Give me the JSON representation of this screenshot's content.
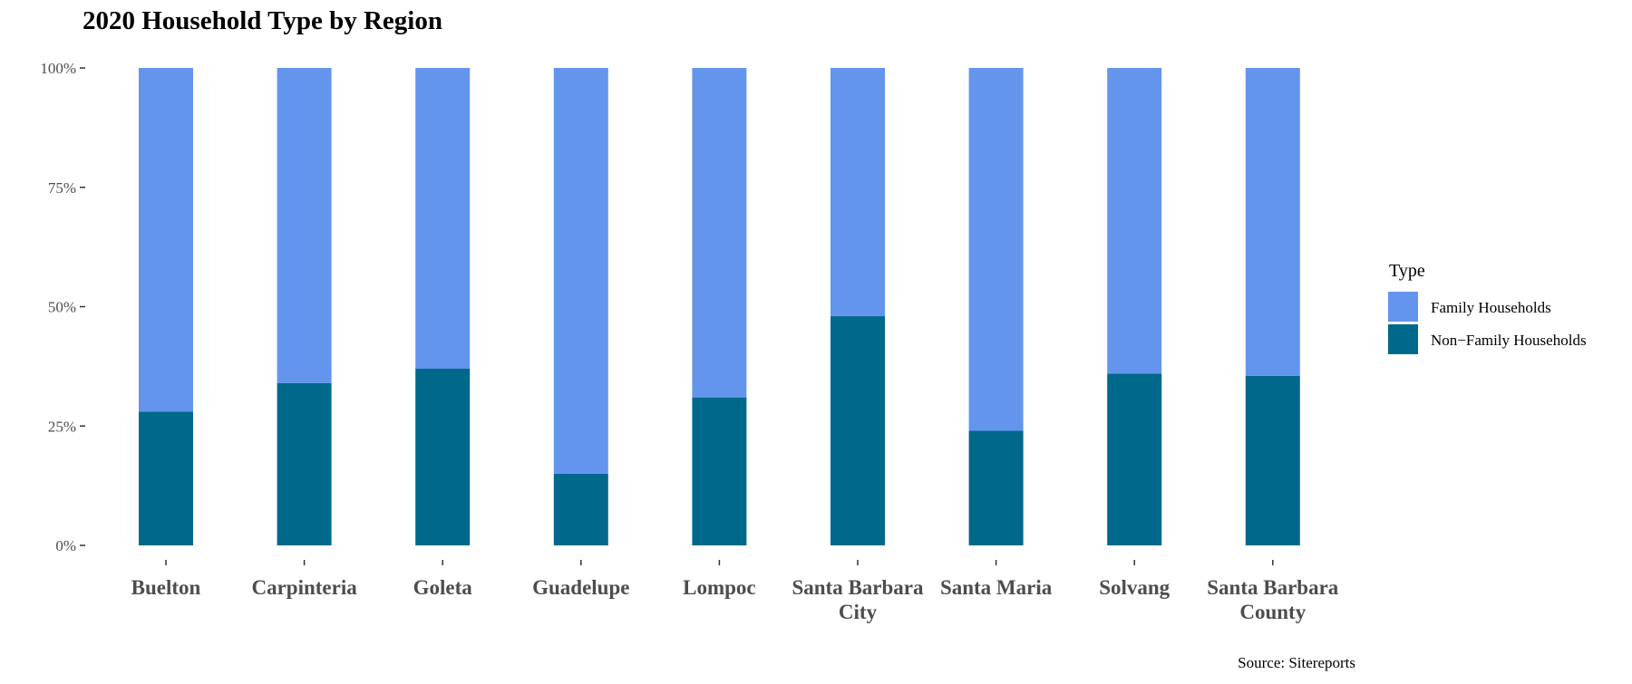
{
  "chart_data": {
    "type": "bar",
    "stacked": true,
    "title": "2020 Household Type by Region",
    "xlabel": "",
    "ylabel": "",
    "categories": [
      "Buelton",
      "Carpinteria",
      "Goleta",
      "Guadelupe",
      "Lompoc",
      "Santa Barbara City",
      "Santa Maria",
      "Solvang",
      "Santa Barbara County"
    ],
    "category_label_lines": [
      [
        "Buelton"
      ],
      [
        "Carpinteria"
      ],
      [
        "Goleta"
      ],
      [
        "Guadelupe"
      ],
      [
        "Lompoc"
      ],
      [
        "Santa Barbara",
        "City"
      ],
      [
        "Santa Maria"
      ],
      [
        "Solvang"
      ],
      [
        "Santa Barbara",
        "County"
      ]
    ],
    "series": [
      {
        "name": "Non−Family Households",
        "color": "#00688b",
        "values": [
          0.28,
          0.34,
          0.37,
          0.15,
          0.31,
          0.48,
          0.24,
          0.36,
          0.355
        ]
      },
      {
        "name": "Family Households",
        "color": "#6495ed",
        "values": [
          0.72,
          0.66,
          0.63,
          0.85,
          0.69,
          0.52,
          0.76,
          0.64,
          0.645
        ]
      }
    ],
    "ylim": [
      0,
      1
    ],
    "y_ticks": [
      0,
      0.25,
      0.5,
      0.75,
      1
    ],
    "y_tick_labels": [
      "0%",
      "25%",
      "50%",
      "75%",
      "100%"
    ],
    "legend": {
      "title": "Type",
      "position": "right",
      "entries": [
        {
          "label": "Family Households",
          "color": "#6495ed"
        },
        {
          "label": "Non−Family Households",
          "color": "#00688b"
        }
      ]
    },
    "grid": false,
    "caption": "Source: Sitereports"
  }
}
